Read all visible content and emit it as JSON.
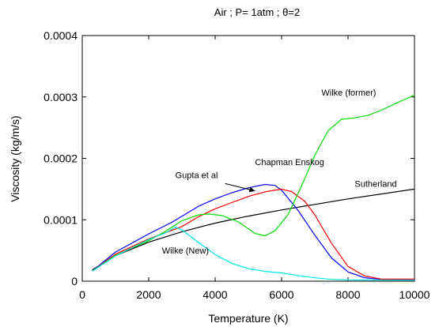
{
  "chart_data": {
    "type": "line",
    "title": "Air ; P= 1atm ; θ=2",
    "xlabel": "Temperature (K)",
    "ylabel": "Viscosity  (kg/m/s)",
    "xlim": [
      0,
      10000
    ],
    "ylim": [
      0,
      0.0004
    ],
    "x_ticks": [
      0,
      2000,
      4000,
      6000,
      8000,
      10000
    ],
    "x_tick_labels": [
      "0",
      "2000",
      "4000",
      "6000",
      "8000",
      "10000"
    ],
    "y_ticks": [
      0,
      0.0001,
      0.0002,
      0.0003,
      0.0004
    ],
    "y_tick_labels": [
      "0",
      "0.0001",
      "0.0002",
      "0.0003",
      "0.0004"
    ],
    "grid": false,
    "legend": "none (curves labelled by annotations)",
    "series": [
      {
        "name": "Sutherland",
        "color": "#000000",
        "points": [
          [
            300,
            1.85e-05
          ],
          [
            1000,
            4.15e-05
          ],
          [
            2000,
            6.35e-05
          ],
          [
            3000,
            8.05e-05
          ],
          [
            4000,
            9.45e-05
          ],
          [
            5000,
            0.000106
          ],
          [
            6000,
            0.000116
          ],
          [
            7000,
            0.000125
          ],
          [
            8000,
            0.000134
          ],
          [
            9000,
            0.000142
          ],
          [
            10000,
            0.00015
          ]
        ]
      },
      {
        "name": "Gupta et al",
        "color": "#0000ff",
        "points": [
          [
            300,
            1.65e-05
          ],
          [
            1000,
            4.75e-05
          ],
          [
            2000,
            7.7e-05
          ],
          [
            2700,
            9.6e-05
          ],
          [
            3500,
            0.000122
          ],
          [
            4000,
            0.000134
          ],
          [
            4500,
            0.000144
          ],
          [
            5000,
            0.000152
          ],
          [
            5500,
            0.0001575
          ],
          [
            5800,
            0.000156
          ],
          [
            6000,
            0.000148
          ],
          [
            6500,
            0.000115
          ],
          [
            7000,
            7.5e-05
          ],
          [
            7500,
            3.8e-05
          ],
          [
            8000,
            1.5e-05
          ],
          [
            8500,
            5.5e-06
          ],
          [
            9000,
            3e-06
          ],
          [
            10000,
            3e-06
          ]
        ]
      },
      {
        "name": "Chapman Enskog",
        "color": "#ff0000",
        "points": [
          [
            300,
            1.65e-05
          ],
          [
            1000,
            4.4e-05
          ],
          [
            2000,
            6.9e-05
          ],
          [
            3000,
            8.9e-05
          ],
          [
            3500,
            0.000105
          ],
          [
            4000,
            0.000118
          ],
          [
            4500,
            0.000128
          ],
          [
            5000,
            0.000138
          ],
          [
            5500,
            0.0001455
          ],
          [
            6000,
            0.00015
          ],
          [
            6300,
            0.000146
          ],
          [
            6700,
            0.00013
          ],
          [
            7000,
            0.000108
          ],
          [
            7500,
            6.2e-05
          ],
          [
            8000,
            2.4e-05
          ],
          [
            8500,
            8.5e-06
          ],
          [
            9000,
            3.5e-06
          ],
          [
            10000,
            3.5e-06
          ]
        ]
      },
      {
        "name": "Wilke (former)",
        "color": "#00dd00",
        "points": [
          [
            300,
            1.65e-05
          ],
          [
            1000,
            4.2e-05
          ],
          [
            2000,
            6.6e-05
          ],
          [
            2500,
            8.1e-05
          ],
          [
            3000,
            9.85e-05
          ],
          [
            3500,
            0.000108
          ],
          [
            3800,
            0.0001095
          ],
          [
            4200,
            0.000107
          ],
          [
            4700,
            9.65e-05
          ],
          [
            5200,
            7.8e-05
          ],
          [
            5500,
            7.4e-05
          ],
          [
            5800,
            8.2e-05
          ],
          [
            6200,
            0.000109
          ],
          [
            6600,
            0.000155
          ],
          [
            7000,
            0.000205
          ],
          [
            7400,
            0.000245
          ],
          [
            7800,
            0.0002635
          ],
          [
            8200,
            0.000266
          ],
          [
            8600,
            0.00027
          ],
          [
            9000,
            0.0002785
          ],
          [
            9500,
            0.000291
          ],
          [
            10000,
            0.000303
          ]
        ]
      },
      {
        "name": "Wilke (New)",
        "color": "#00e6e6",
        "points": [
          [
            300,
            1.65e-05
          ],
          [
            1000,
            4.1e-05
          ],
          [
            2000,
            6.8e-05
          ],
          [
            2500,
            7.85e-05
          ],
          [
            2800,
            8.8e-05
          ],
          [
            3000,
            8.35e-05
          ],
          [
            3500,
            6.3e-05
          ],
          [
            4000,
            4.35e-05
          ],
          [
            4500,
            2.9e-05
          ],
          [
            5000,
            2.05e-05
          ],
          [
            5500,
            1.6e-05
          ],
          [
            6000,
            1.35e-05
          ],
          [
            6500,
            9e-06
          ],
          [
            7000,
            5.5e-06
          ],
          [
            7500,
            3e-06
          ],
          [
            8000,
            2e-06
          ],
          [
            10000,
            1.5e-06
          ]
        ]
      }
    ],
    "annotations": [
      {
        "text": "Wilke (former)",
        "x": 7200,
        "y": 0.000302
      },
      {
        "text": "Chapman Enskog",
        "x": 5200,
        "y": 0.000189
      },
      {
        "text": "Gupta et al",
        "x": 2800,
        "y": 0.000168
      },
      {
        "text": "Sutherland",
        "x": 8200,
        "y": 0.000154
      },
      {
        "text": "Wilke (New)",
        "x": 2400,
        "y": 4.5e-05
      }
    ],
    "arrow": {
      "from": [
        4300,
        0.000159
      ],
      "to": [
        5200,
        0.000147
      ]
    }
  }
}
